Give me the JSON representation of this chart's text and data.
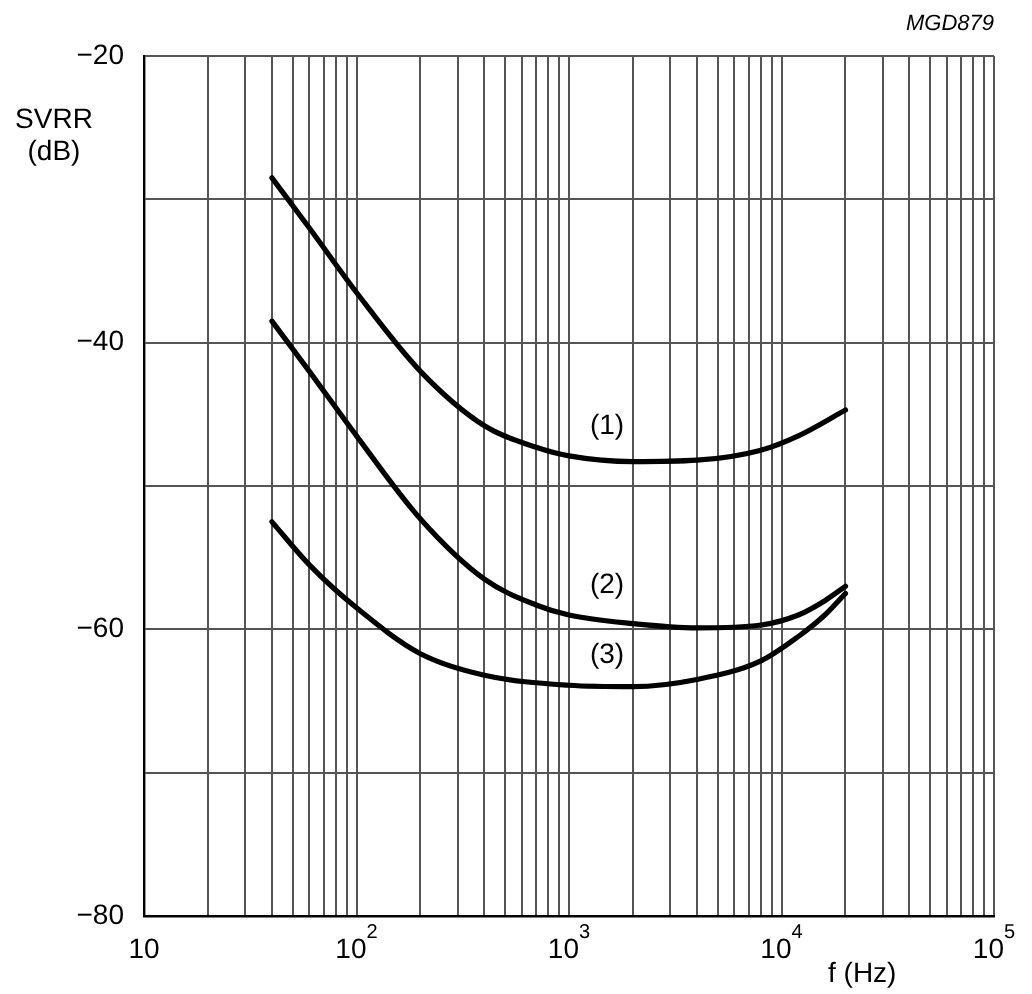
{
  "chart_data": {
    "type": "line",
    "xlabel": "f (Hz)",
    "ylabel": "SVRR (dB)",
    "log": "x",
    "grid": true,
    "legend": false,
    "marker": "none",
    "line_style": "solid",
    "xlim": [
      10,
      100000
    ],
    "ylim": [
      -80,
      -20
    ],
    "xticks": [
      10,
      {
        "value": 20,
        "label": null
      },
      {
        "value": 30,
        "label": null
      },
      {
        "value": 40,
        "label": null
      },
      {
        "value": 50,
        "label": null
      },
      {
        "value": 60,
        "label": null
      },
      {
        "value": 70,
        "label": null
      },
      {
        "value": 80,
        "label": null
      },
      {
        "value": 90,
        "label": null
      },
      {
        "value": 100,
        "label": "10$^{2}$"
      },
      {
        "value": 200,
        "label": null
      },
      {
        "value": 300,
        "label": null
      },
      {
        "value": 400,
        "label": null
      },
      {
        "value": 500,
        "label": null
      },
      {
        "value": 600,
        "label": null
      },
      {
        "value": 700,
        "label": null
      },
      {
        "value": 800,
        "label": null
      },
      {
        "value": 900,
        "label": null
      },
      {
        "value": 1000,
        "label": "10$^{3}$"
      },
      {
        "value": 2000,
        "label": null
      },
      {
        "value": 3000,
        "label": null
      },
      {
        "value": 4000,
        "label": null
      },
      {
        "value": 5000,
        "label": null
      },
      {
        "value": 6000,
        "label": null
      },
      {
        "value": 7000,
        "label": null
      },
      {
        "value": 8000,
        "label": null
      },
      {
        "value": 9000,
        "label": null
      },
      {
        "value": 10000,
        "label": "10$^{4}$"
      },
      {
        "value": 20000,
        "label": null
      },
      {
        "value": 30000,
        "label": null
      },
      {
        "value": 40000,
        "label": null
      },
      {
        "value": 50000,
        "label": null
      },
      {
        "value": 60000,
        "label": null
      },
      {
        "value": 70000,
        "label": null
      },
      {
        "value": 80000,
        "label": null
      },
      {
        "value": 90000,
        "label": null
      },
      {
        "value": 100000,
        "label": "10$^{5}$"
      }
    ],
    "yticks": [
      {
        "value": -80,
        "label": "−80"
      },
      {
        "value": -70,
        "label": null
      },
      {
        "value": -60,
        "label": "−60"
      },
      {
        "value": -50,
        "label": null
      },
      {
        "value": -40,
        "label": "−40"
      },
      {
        "value": -30,
        "label": null
      },
      {
        "value": -20,
        "label": "−20"
      }
    ],
    "series": [
      {
        "name": "(1)",
        "color": "#000000",
        "x": [
          40,
          60,
          100,
          200,
          400,
          700,
          1000,
          2000,
          4000,
          8000,
          12000,
          20000
        ],
        "values": [
          -28.5,
          -32,
          -36.5,
          -42,
          -45.8,
          -47.3,
          -47.9,
          -48.3,
          -48.2,
          -47.5,
          -46.5,
          -44.7
        ]
      },
      {
        "name": "(2)",
        "color": "#000000",
        "x": [
          40,
          60,
          100,
          200,
          400,
          700,
          1000,
          2000,
          4000,
          8000,
          12000,
          16000,
          20000
        ],
        "values": [
          -38.5,
          -42,
          -46.5,
          -52.3,
          -56.5,
          -58.3,
          -59,
          -59.6,
          -59.9,
          -59.7,
          -59,
          -58,
          -57
        ]
      },
      {
        "name": "(3)",
        "color": "#000000",
        "x": [
          40,
          60,
          100,
          200,
          400,
          1000,
          2000,
          4000,
          8000,
          12000,
          16000,
          20000
        ],
        "values": [
          -52.5,
          -55.5,
          -58.5,
          -61.7,
          -63.2,
          -63.9,
          -64,
          -63.5,
          -62.2,
          -60.5,
          -59,
          -57.5
        ]
      }
    ],
    "annotations": [
      "MGD879"
    ]
  }
}
